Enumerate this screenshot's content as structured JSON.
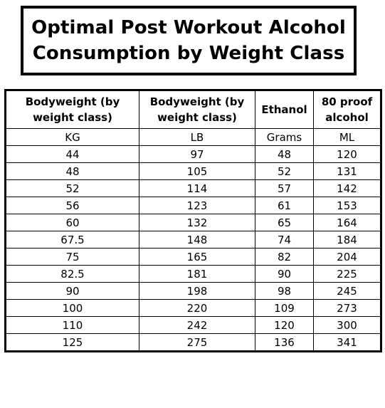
{
  "title": {
    "line1": "Optimal Post Workout Alcohol",
    "line2": "Consumption by Weight Class"
  },
  "table": {
    "headers": [
      [
        "Bodyweight (by",
        "weight class)"
      ],
      [
        "Bodyweight (by",
        "weight class)"
      ],
      [
        "Ethanol"
      ],
      [
        "80 proof",
        "alcohol"
      ]
    ],
    "units": [
      "KG",
      "LB",
      "Grams",
      "ML"
    ],
    "rows": [
      [
        "44",
        "97",
        "48",
        "120"
      ],
      [
        "48",
        "105",
        "52",
        "131"
      ],
      [
        "52",
        "114",
        "57",
        "142"
      ],
      [
        "56",
        "123",
        "61",
        "153"
      ],
      [
        "60",
        "132",
        "65",
        "164"
      ],
      [
        "67.5",
        "148",
        "74",
        "184"
      ],
      [
        "75",
        "165",
        "82",
        "204"
      ],
      [
        "82.5",
        "181",
        "90",
        "225"
      ],
      [
        "90",
        "198",
        "98",
        "245"
      ],
      [
        "100",
        "220",
        "109",
        "273"
      ],
      [
        "110",
        "242",
        "120",
        "300"
      ],
      [
        "125",
        "275",
        "136",
        "341"
      ]
    ]
  }
}
